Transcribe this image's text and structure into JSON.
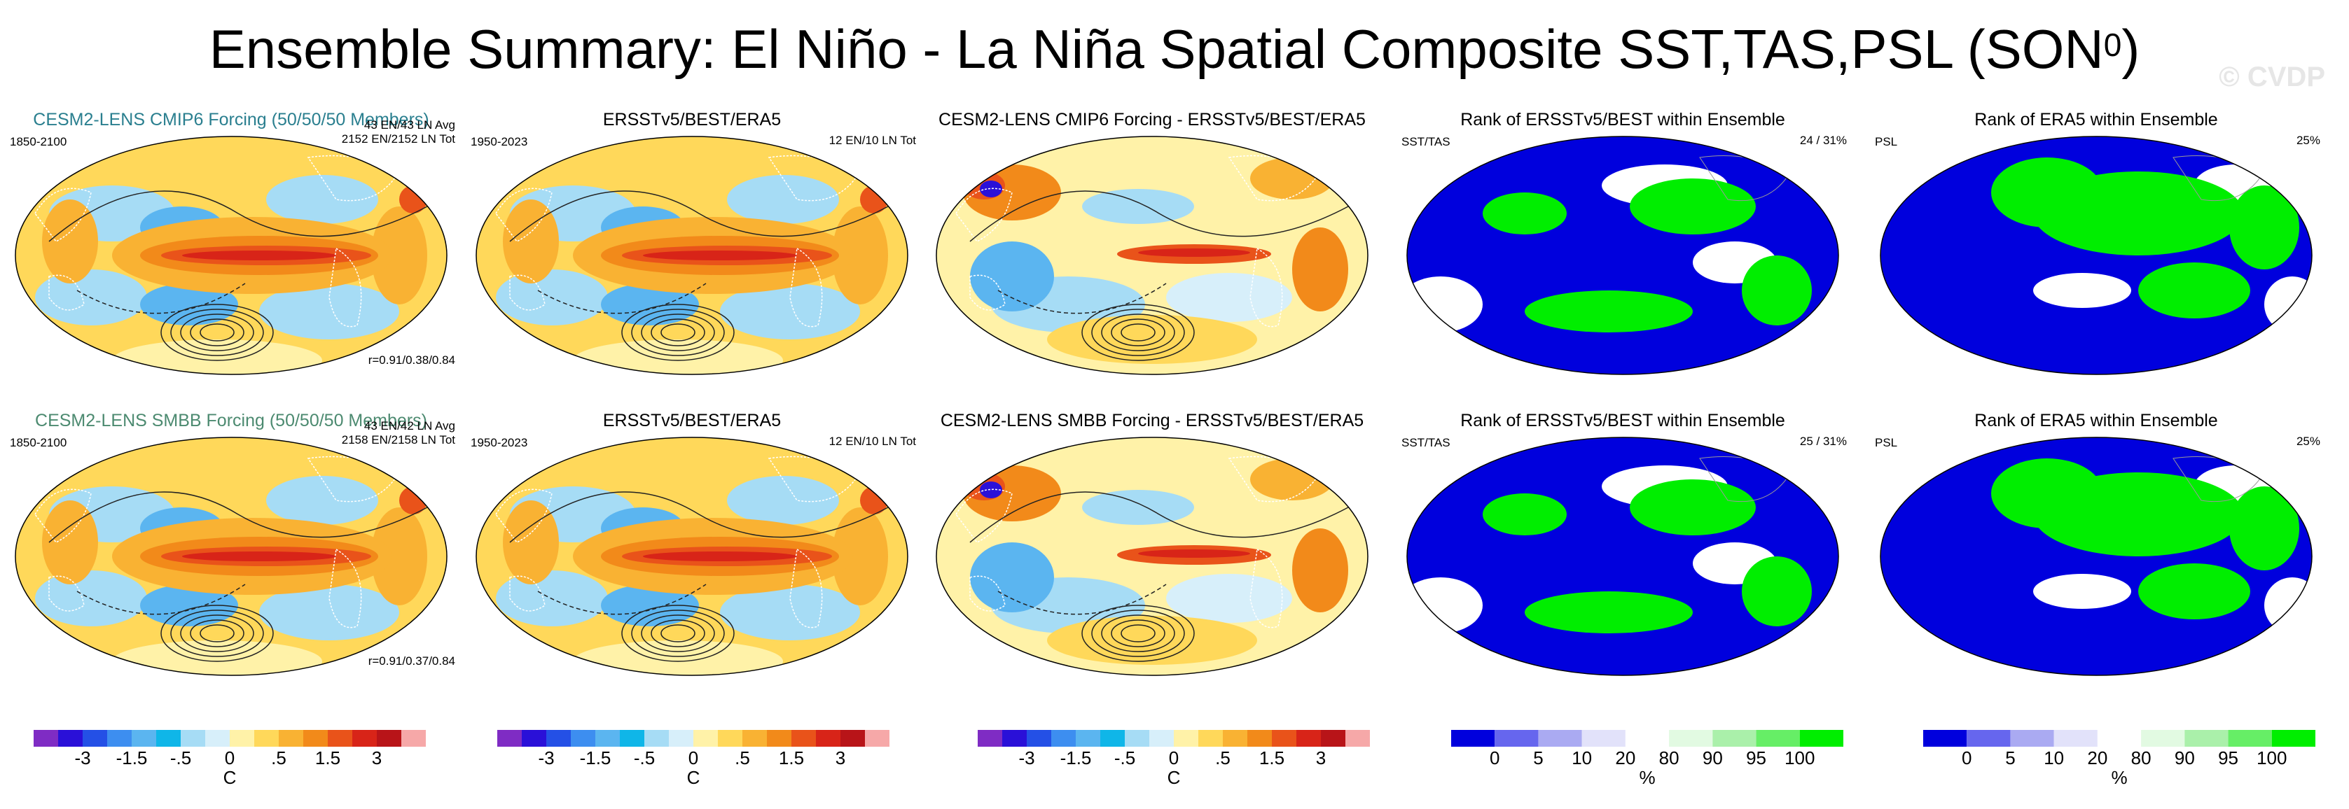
{
  "title": {
    "main": "Ensemble Summary: El Niño - La Niña Spatial Composite SST,TAS,PSL (SON",
    "superscript": "0",
    "close": ")"
  },
  "watermark": "© CVDP",
  "colors": {
    "cesm_cmip6_title": "#2a7f8f",
    "cesm_smbb_title": "#4c8a70",
    "rank_low": "#0000dd",
    "rank_high": "#00ee00"
  },
  "rows": [
    {
      "panels": [
        {
          "title": "CESM2-LENS CMIP6 Forcing (50/50/50 Members)",
          "left_text": "1850-2100",
          "right_lines": [
            "43 EN/43 LN Avg",
            "2152 EN/2152 LN Tot"
          ],
          "bottom_right": "r=0.91/0.38/0.84"
        },
        {
          "title": "ERSSTv5/BEST/ERA5",
          "left_text": "1950-2023",
          "right_lines": [
            "12 EN/10 LN Tot"
          ]
        },
        {
          "title": "CESM2-LENS CMIP6 Forcing - ERSSTv5/BEST/ERA5"
        },
        {
          "title": "Rank of ERSSTv5/BEST within Ensemble",
          "left_text": "SST/TAS",
          "right_lines": [
            "24 /  31%"
          ]
        },
        {
          "title": "Rank of ERA5 within Ensemble",
          "left_text": "PSL",
          "right_lines": [
            "25%"
          ]
        }
      ]
    },
    {
      "panels": [
        {
          "title": "CESM2-LENS SMBB Forcing (50/50/50 Members)",
          "left_text": "1850-2100",
          "right_lines": [
            "43 EN/42 LN Avg",
            "2158 EN/2158 LN Tot"
          ],
          "bottom_right": "r=0.91/0.37/0.84"
        },
        {
          "title": "ERSSTv5/BEST/ERA5",
          "left_text": "1950-2023",
          "right_lines": [
            "12 EN/10 LN Tot"
          ]
        },
        {
          "title": "CESM2-LENS SMBB Forcing - ERSSTv5/BEST/ERA5"
        },
        {
          "title": "Rank of ERSSTv5/BEST within Ensemble",
          "left_text": "SST/TAS",
          "right_lines": [
            "25 /  31%"
          ]
        },
        {
          "title": "Rank of ERA5 within Ensemble",
          "left_text": "PSL",
          "right_lines": [
            "25%"
          ]
        }
      ]
    }
  ],
  "colorbars": [
    {
      "kind": "temp",
      "unit": "C",
      "labels": [
        "-3",
        "-1.5",
        "-.5",
        "0",
        ".5",
        "1.5",
        "3"
      ]
    },
    {
      "kind": "temp",
      "unit": "C",
      "labels": [
        "-3",
        "-1.5",
        "-.5",
        "0",
        ".5",
        "1.5",
        "3"
      ]
    },
    {
      "kind": "temp",
      "unit": "C",
      "labels": [
        "-3",
        "-1.5",
        "-.5",
        "0",
        ".5",
        "1.5",
        "3"
      ]
    },
    {
      "kind": "rank",
      "unit": "%",
      "labels": [
        "0",
        "5",
        "10",
        "20",
        "80",
        "90",
        "95",
        "100"
      ]
    },
    {
      "kind": "rank",
      "unit": "%",
      "labels": [
        "0",
        "5",
        "10",
        "20",
        "80",
        "90",
        "95",
        "100"
      ]
    }
  ],
  "chart_data": {
    "type": "heatmap",
    "title": "Ensemble Summary: El Niño - La Niña Spatial Composite SST,TAS,PSL (SON0)",
    "projection": "Robinson (global)",
    "variables": [
      "SST",
      "TAS",
      "PSL"
    ],
    "season": "SON",
    "temperature_colorbar": {
      "unit": "C",
      "ticks": [
        -3,
        -1.5,
        -0.5,
        0,
        0.5,
        1.5,
        3
      ],
      "n_colors": 16
    },
    "rank_colorbar": {
      "unit": "%",
      "ticks": [
        0,
        5,
        10,
        20,
        80,
        90,
        95,
        100
      ],
      "n_colors": 9
    },
    "pattern_correlations": {
      "CESM2-LENS CMIP6": [
        0.91,
        0.38,
        0.84
      ],
      "CESM2-LENS SMBB": [
        0.91,
        0.37,
        0.84
      ]
    },
    "composite_counts": {
      "CESM2-LENS CMIP6": {
        "EN_avg": 43,
        "LN_avg": 43,
        "EN_tot": 2152,
        "LN_tot": 2152
      },
      "CESM2-LENS SMBB": {
        "EN_avg": 43,
        "LN_avg": 42,
        "EN_tot": 2158,
        "LN_tot": 2158
      },
      "ERSSTv5/BEST/ERA5": {
        "EN_tot": 12,
        "LN_tot": 10
      }
    },
    "rank_summary": {
      "CMIP6": {
        "SST_TAS": [
          24,
          31
        ],
        "PSL": 25
      },
      "SMBB": {
        "SST_TAS": [
          25,
          31
        ],
        "PSL": 25
      }
    }
  }
}
